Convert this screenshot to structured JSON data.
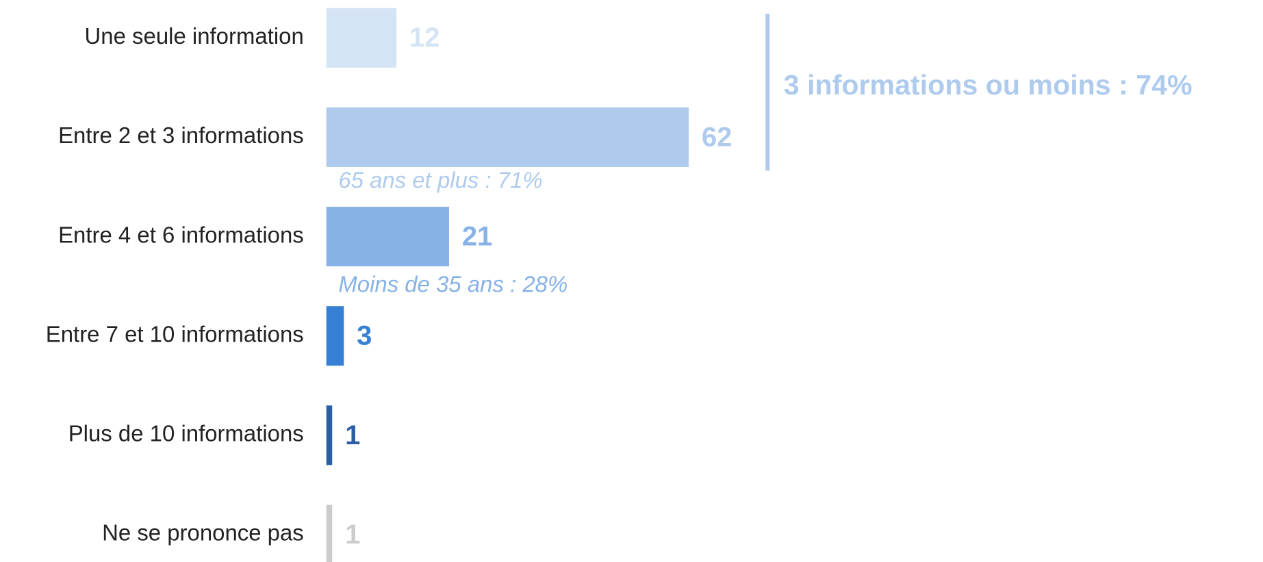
{
  "chart_data": {
    "type": "hbar",
    "categories": [
      "Une seule information",
      "Entre 2 et 3 informations",
      "Entre 4 et 6 informations",
      "Entre 7 et 10 informations",
      "Plus de 10 informations",
      "Ne se prononce pas"
    ],
    "values": [
      12,
      62,
      21,
      3,
      1,
      1
    ],
    "colors": [
      "#d5e4f5",
      "#aecbee",
      "#86b2e6",
      "#3580d4",
      "#2a5fa8",
      "#cccccc"
    ],
    "annotations": [
      {
        "text": "65 ans et plus : 71%",
        "color": "#aecbee"
      },
      {
        "text": "Moins de 35 ans : 28%",
        "color": "#86b2e6"
      },
      {
        "text": "3 informations ou moins : 74%",
        "color": "#aecbee"
      }
    ]
  }
}
